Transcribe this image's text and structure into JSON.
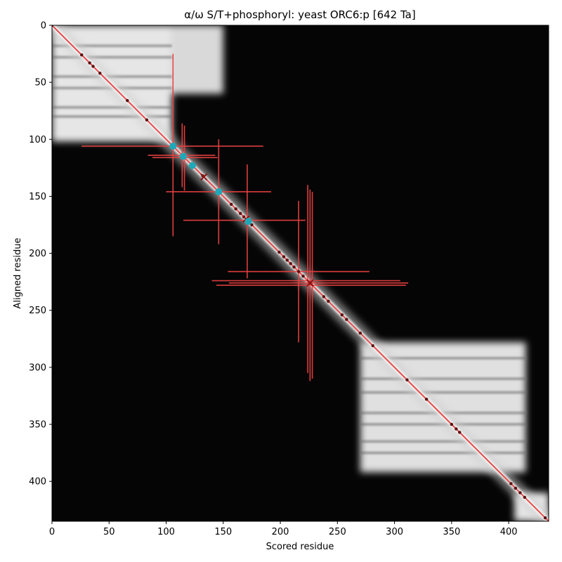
{
  "chart_data": {
    "type": "heatmap",
    "title": "α/ω S/T+phosphoryl: yeast ORC6:p [642 Ta]",
    "xlabel": "Scored residue",
    "ylabel": "Aligned residue",
    "xlim": [
      0,
      435
    ],
    "ylim": [
      435,
      0
    ],
    "xticks": [
      0,
      50,
      100,
      150,
      200,
      250,
      300,
      350,
      400
    ],
    "yticks": [
      0,
      50,
      100,
      150,
      200,
      250,
      300,
      350,
      400
    ],
    "grid": false,
    "colormap": "gray",
    "diagonal_line": {
      "from": [
        0,
        0
      ],
      "to": [
        435,
        435
      ],
      "color": "#e84040"
    },
    "bright_blocks": [
      {
        "x": [
          0,
          105
        ],
        "y": [
          0,
          102
        ],
        "level": 0.9
      },
      {
        "x": [
          105,
          150
        ],
        "y": [
          0,
          60
        ],
        "level": 0.85
      },
      {
        "x": [
          270,
          415
        ],
        "y": [
          278,
          392
        ],
        "level": 0.88
      },
      {
        "x": [
          405,
          435
        ],
        "y": [
          410,
          435
        ],
        "level": 0.9
      }
    ],
    "bright_bands_y": [
      18,
      28,
      45,
      55,
      72,
      80,
      292,
      310,
      322,
      340,
      350,
      365,
      375
    ],
    "diagonal_points": [
      0,
      26,
      33,
      36,
      42,
      66,
      83,
      106,
      115,
      123,
      132,
      146,
      157,
      161,
      165,
      168,
      172,
      175,
      199,
      203,
      206,
      209,
      212,
      216,
      220,
      226,
      238,
      242,
      254,
      258,
      270,
      281,
      311,
      328,
      350,
      354,
      357,
      402,
      406,
      410,
      414,
      432
    ],
    "cyan_points": [
      106,
      115,
      123,
      146,
      172
    ],
    "cross_points": [
      133,
      170,
      226
    ],
    "error_bars": [
      {
        "x": 106,
        "y": 106,
        "xerr": [
          26,
          185
        ],
        "yerr": [
          25,
          185
        ]
      },
      {
        "x": 114,
        "y": 114,
        "xerr": [
          84,
          143
        ],
        "yerr": [
          86,
          142
        ]
      },
      {
        "x": 116,
        "y": 116,
        "xerr": [
          88,
          145
        ],
        "yerr": [
          88,
          145
        ]
      },
      {
        "x": 146,
        "y": 146,
        "xerr": [
          100,
          192
        ],
        "yerr": [
          100,
          192
        ]
      },
      {
        "x": 171,
        "y": 171,
        "xerr": [
          115,
          222
        ],
        "yerr": [
          122,
          222
        ]
      },
      {
        "x": 216,
        "y": 216,
        "xerr": [
          154,
          278
        ],
        "yerr": [
          154,
          278
        ]
      },
      {
        "x": 224,
        "y": 224,
        "xerr": [
          140,
          305
        ],
        "yerr": [
          140,
          305
        ]
      },
      {
        "x": 226,
        "y": 226,
        "xerr": [
          155,
          312
        ],
        "yerr": [
          144,
          312
        ]
      },
      {
        "x": 228,
        "y": 228,
        "xerr": [
          144,
          310
        ],
        "yerr": [
          146,
          310
        ]
      }
    ]
  }
}
